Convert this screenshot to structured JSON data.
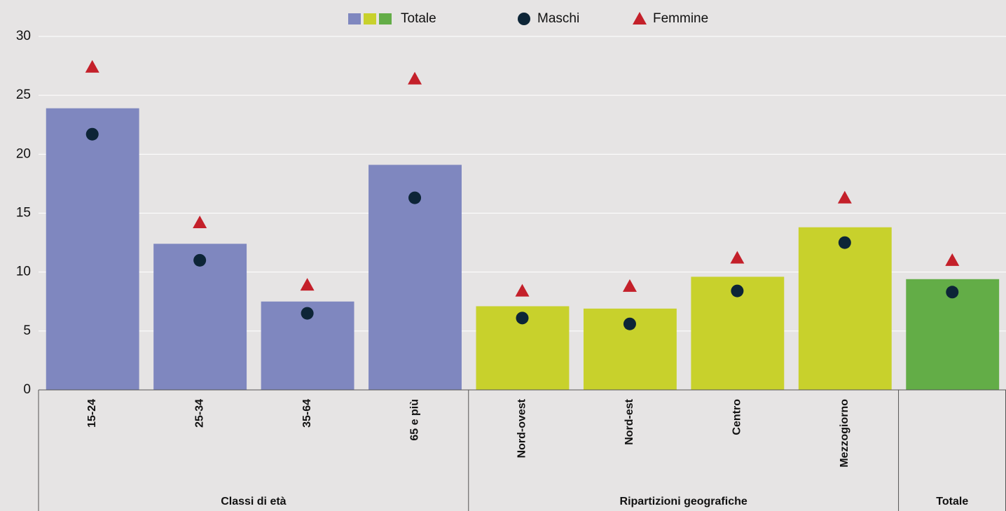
{
  "chart_data": {
    "type": "bar",
    "categories": [
      "15-24",
      "25-34",
      "35-64",
      "65 e più",
      "Nord-ovest",
      "Nord-est",
      "Centro",
      "Mezzogiorno",
      null
    ],
    "groups": [
      {
        "label": "Classi di età",
        "size": 4
      },
      {
        "label": "Ripartizioni geografiche",
        "size": 4
      },
      {
        "label": "Totale",
        "size": 1
      }
    ],
    "series": [
      {
        "name": "Totale",
        "kind": "bar",
        "colors": [
          "#7f87bf",
          "#7f87bf",
          "#7f87bf",
          "#7f87bf",
          "#c8d12c",
          "#c8d12c",
          "#c8d12c",
          "#c8d12c",
          "#63ad47"
        ],
        "values": [
          23.9,
          12.4,
          7.5,
          19.1,
          7.1,
          6.9,
          9.6,
          13.8,
          9.4
        ]
      },
      {
        "name": "Maschi",
        "kind": "circle",
        "color": "#0d2537",
        "values": [
          21.7,
          11.0,
          6.5,
          16.3,
          6.1,
          5.6,
          8.4,
          12.5,
          8.3
        ]
      },
      {
        "name": "Femmine",
        "kind": "triangle",
        "color": "#c4202a",
        "values": [
          27.4,
          14.2,
          8.9,
          26.4,
          8.4,
          8.8,
          11.2,
          16.3,
          11.0
        ]
      }
    ],
    "ylim": [
      0,
      30
    ],
    "yticks": [
      0,
      5,
      10,
      15,
      20,
      25,
      30
    ],
    "grid": true
  }
}
